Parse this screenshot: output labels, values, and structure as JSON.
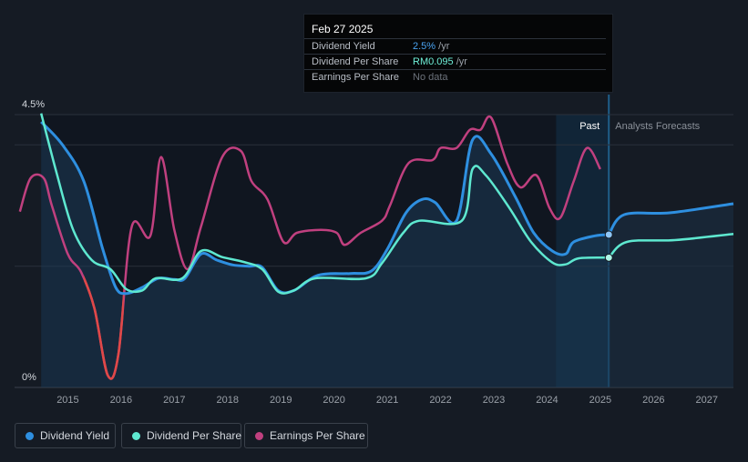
{
  "tooltip": {
    "date": "Feb 27 2025",
    "rows": [
      {
        "label": "Dividend Yield",
        "value": "2.5%",
        "unit": " /yr",
        "color": "#4aa3f0"
      },
      {
        "label": "Dividend Per Share",
        "value": "RM0.095",
        "unit": " /yr",
        "color": "#6ff0d8"
      },
      {
        "label": "Earnings Per Share",
        "value": "No data",
        "unit": "",
        "color": "#6c727b"
      }
    ]
  },
  "legend": [
    {
      "label": "Dividend Yield",
      "color": "#2e8fe0"
    },
    {
      "label": "Dividend Per Share",
      "color": "#5ee8d0"
    },
    {
      "label": "Earnings Per Share",
      "color": "#c0407f"
    }
  ],
  "chart_data": {
    "type": "line",
    "y_axis_labels": [
      "4.5%",
      "0%"
    ],
    "ylim": [
      0,
      4.5
    ],
    "xlim": [
      2014.0,
      2027.5
    ],
    "x_tick_labels": [
      "2015",
      "2016",
      "2017",
      "2018",
      "2019",
      "2020",
      "2021",
      "2022",
      "2023",
      "2024",
      "2025",
      "2026",
      "2027"
    ],
    "x_ticks": [
      2015,
      2016,
      2017,
      2018,
      2019,
      2020,
      2021,
      2022,
      2023,
      2024,
      2025,
      2026,
      2027
    ],
    "period_labels": {
      "past": "Past",
      "forecast": "Analysts Forecasts"
    },
    "past_end": 2025.16,
    "forecast_start": 2024.17,
    "colors": {
      "yield": "#2e8fe0",
      "dps": "#5ee8d0",
      "eps_pos": "#c0407f",
      "eps_neg": "#e04848"
    },
    "series": [
      {
        "name": "Dividend Yield",
        "points": [
          [
            2014.5,
            4.38
          ],
          [
            2014.9,
            4.0
          ],
          [
            2015.3,
            3.4
          ],
          [
            2015.65,
            2.3
          ],
          [
            2015.9,
            1.65
          ],
          [
            2016.1,
            1.55
          ],
          [
            2016.4,
            1.65
          ],
          [
            2016.7,
            1.8
          ],
          [
            2017.0,
            1.78
          ],
          [
            2017.2,
            1.8
          ],
          [
            2017.5,
            2.2
          ],
          [
            2017.8,
            2.1
          ],
          [
            2018.1,
            2.02
          ],
          [
            2018.4,
            2.0
          ],
          [
            2018.65,
            1.98
          ],
          [
            2018.95,
            1.6
          ],
          [
            2019.25,
            1.6
          ],
          [
            2019.7,
            1.85
          ],
          [
            2020.3,
            1.88
          ],
          [
            2020.7,
            1.92
          ],
          [
            2021.0,
            2.28
          ],
          [
            2021.35,
            2.88
          ],
          [
            2021.65,
            3.1
          ],
          [
            2021.9,
            3.05
          ],
          [
            2022.3,
            2.75
          ],
          [
            2022.6,
            4.08
          ],
          [
            2022.95,
            3.85
          ],
          [
            2023.4,
            3.15
          ],
          [
            2023.75,
            2.55
          ],
          [
            2024.1,
            2.25
          ],
          [
            2024.35,
            2.2
          ],
          [
            2024.5,
            2.4
          ],
          [
            2024.9,
            2.5
          ],
          [
            2025.16,
            2.52
          ]
        ]
      },
      {
        "name": "Dividend Per Share",
        "points": [
          [
            2014.5,
            4.52
          ],
          [
            2014.8,
            3.5
          ],
          [
            2015.1,
            2.6
          ],
          [
            2015.45,
            2.1
          ],
          [
            2015.8,
            1.95
          ],
          [
            2016.1,
            1.62
          ],
          [
            2016.4,
            1.6
          ],
          [
            2016.65,
            1.8
          ],
          [
            2017.15,
            1.8
          ],
          [
            2017.5,
            2.25
          ],
          [
            2017.9,
            2.15
          ],
          [
            2018.3,
            2.07
          ],
          [
            2018.65,
            1.95
          ],
          [
            2018.95,
            1.58
          ],
          [
            2019.25,
            1.6
          ],
          [
            2019.65,
            1.8
          ],
          [
            2020.6,
            1.8
          ],
          [
            2020.9,
            2.05
          ],
          [
            2021.3,
            2.55
          ],
          [
            2021.6,
            2.75
          ],
          [
            2022.4,
            2.75
          ],
          [
            2022.6,
            3.6
          ],
          [
            2022.85,
            3.5
          ],
          [
            2023.3,
            2.95
          ],
          [
            2023.7,
            2.4
          ],
          [
            2024.1,
            2.06
          ],
          [
            2024.35,
            2.03
          ],
          [
            2024.6,
            2.13
          ],
          [
            2025.16,
            2.14
          ]
        ]
      },
      {
        "name": "Earnings Per Share",
        "points": [
          [
            2014.1,
            2.9
          ],
          [
            2014.3,
            3.45
          ],
          [
            2014.55,
            3.45
          ],
          [
            2014.7,
            3.0
          ],
          [
            2015.0,
            2.2
          ],
          [
            2015.25,
            1.9
          ],
          [
            2015.5,
            1.3
          ],
          [
            2015.75,
            0.2
          ],
          [
            2015.95,
            0.55
          ],
          [
            2016.2,
            2.65
          ],
          [
            2016.55,
            2.5
          ],
          [
            2016.75,
            3.8
          ],
          [
            2017.0,
            2.6
          ],
          [
            2017.25,
            1.95
          ],
          [
            2017.5,
            2.65
          ],
          [
            2017.9,
            3.8
          ],
          [
            2018.25,
            3.9
          ],
          [
            2018.45,
            3.4
          ],
          [
            2018.75,
            3.1
          ],
          [
            2019.05,
            2.4
          ],
          [
            2019.3,
            2.55
          ],
          [
            2019.75,
            2.6
          ],
          [
            2020.05,
            2.55
          ],
          [
            2020.2,
            2.35
          ],
          [
            2020.5,
            2.55
          ],
          [
            2020.9,
            2.75
          ],
          [
            2021.05,
            3.0
          ],
          [
            2021.4,
            3.7
          ],
          [
            2021.85,
            3.75
          ],
          [
            2022.0,
            3.95
          ],
          [
            2022.3,
            3.95
          ],
          [
            2022.55,
            4.25
          ],
          [
            2022.75,
            4.25
          ],
          [
            2022.95,
            4.45
          ],
          [
            2023.25,
            3.7
          ],
          [
            2023.5,
            3.3
          ],
          [
            2023.8,
            3.5
          ],
          [
            2024.05,
            2.95
          ],
          [
            2024.25,
            2.8
          ],
          [
            2024.5,
            3.4
          ],
          [
            2024.75,
            3.95
          ],
          [
            2025.0,
            3.6
          ]
        ]
      },
      {
        "name": "Dividend Yield forecast",
        "points": [
          [
            2025.16,
            2.52
          ],
          [
            2025.45,
            2.85
          ],
          [
            2026.3,
            2.88
          ],
          [
            2027.5,
            3.03
          ]
        ]
      },
      {
        "name": "Dividend Per Share forecast",
        "points": [
          [
            2025.16,
            2.14
          ],
          [
            2025.5,
            2.4
          ],
          [
            2026.4,
            2.43
          ],
          [
            2027.5,
            2.53
          ]
        ]
      }
    ]
  }
}
